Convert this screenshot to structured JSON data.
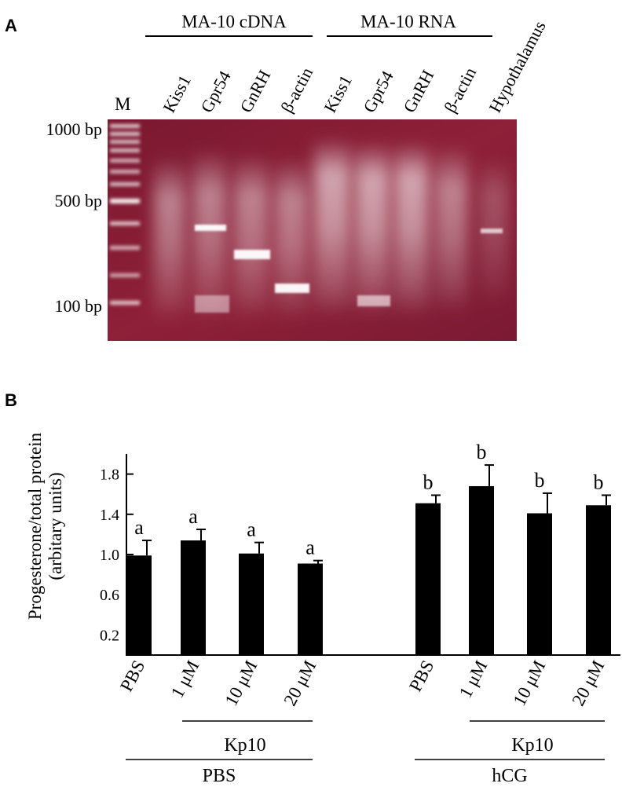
{
  "panel_a": {
    "letter": "A",
    "marker_label": "M",
    "group_labels": [
      "MA-10 cDNA",
      "MA-10 RNA"
    ],
    "lane_labels": [
      "Kiss1",
      "Gpr54",
      "GnRH",
      "β-actin",
      "Kiss1",
      "Gpr54",
      "GnRH",
      "β-actin",
      "Hypothalamus"
    ],
    "size_labels": [
      "1000 bp",
      "500 bp",
      "100 bp"
    ],
    "gel_colors": {
      "background": "#8a1e36",
      "band": "#ffffff"
    }
  },
  "chart_data": {
    "type": "bar",
    "panel_letter": "B",
    "ylabel": "Progesterone/total protein (arbitary units)",
    "ylabel_lines": [
      "Progesterone/total protein",
      "(arbitary units)"
    ],
    "ylim": [
      0,
      2.0
    ],
    "yticks": [
      0.2,
      0.6,
      1.0,
      1.4,
      1.8
    ],
    "ytick_labels": [
      "0.2",
      "0.6",
      "1.0",
      "1.4",
      "1.8"
    ],
    "categories": [
      "PBS",
      "1 μM",
      "10 μM",
      "20 μM",
      "PBS",
      "1 μM",
      "10 μM",
      "20 μM"
    ],
    "values": [
      0.99,
      1.14,
      1.01,
      0.91,
      1.51,
      1.68,
      1.41,
      1.49
    ],
    "errors": [
      0.15,
      0.11,
      0.11,
      0.03,
      0.08,
      0.21,
      0.2,
      0.1
    ],
    "significance": [
      "a",
      "a",
      "a",
      "a",
      "b",
      "b",
      "b",
      "b"
    ],
    "groups": [
      {
        "label": "PBS",
        "subgroup_label": "Kp10"
      },
      {
        "label": "hCG",
        "subgroup_label": "Kp10"
      }
    ],
    "bar_color": "#000000",
    "grid": false,
    "legend": "none"
  }
}
